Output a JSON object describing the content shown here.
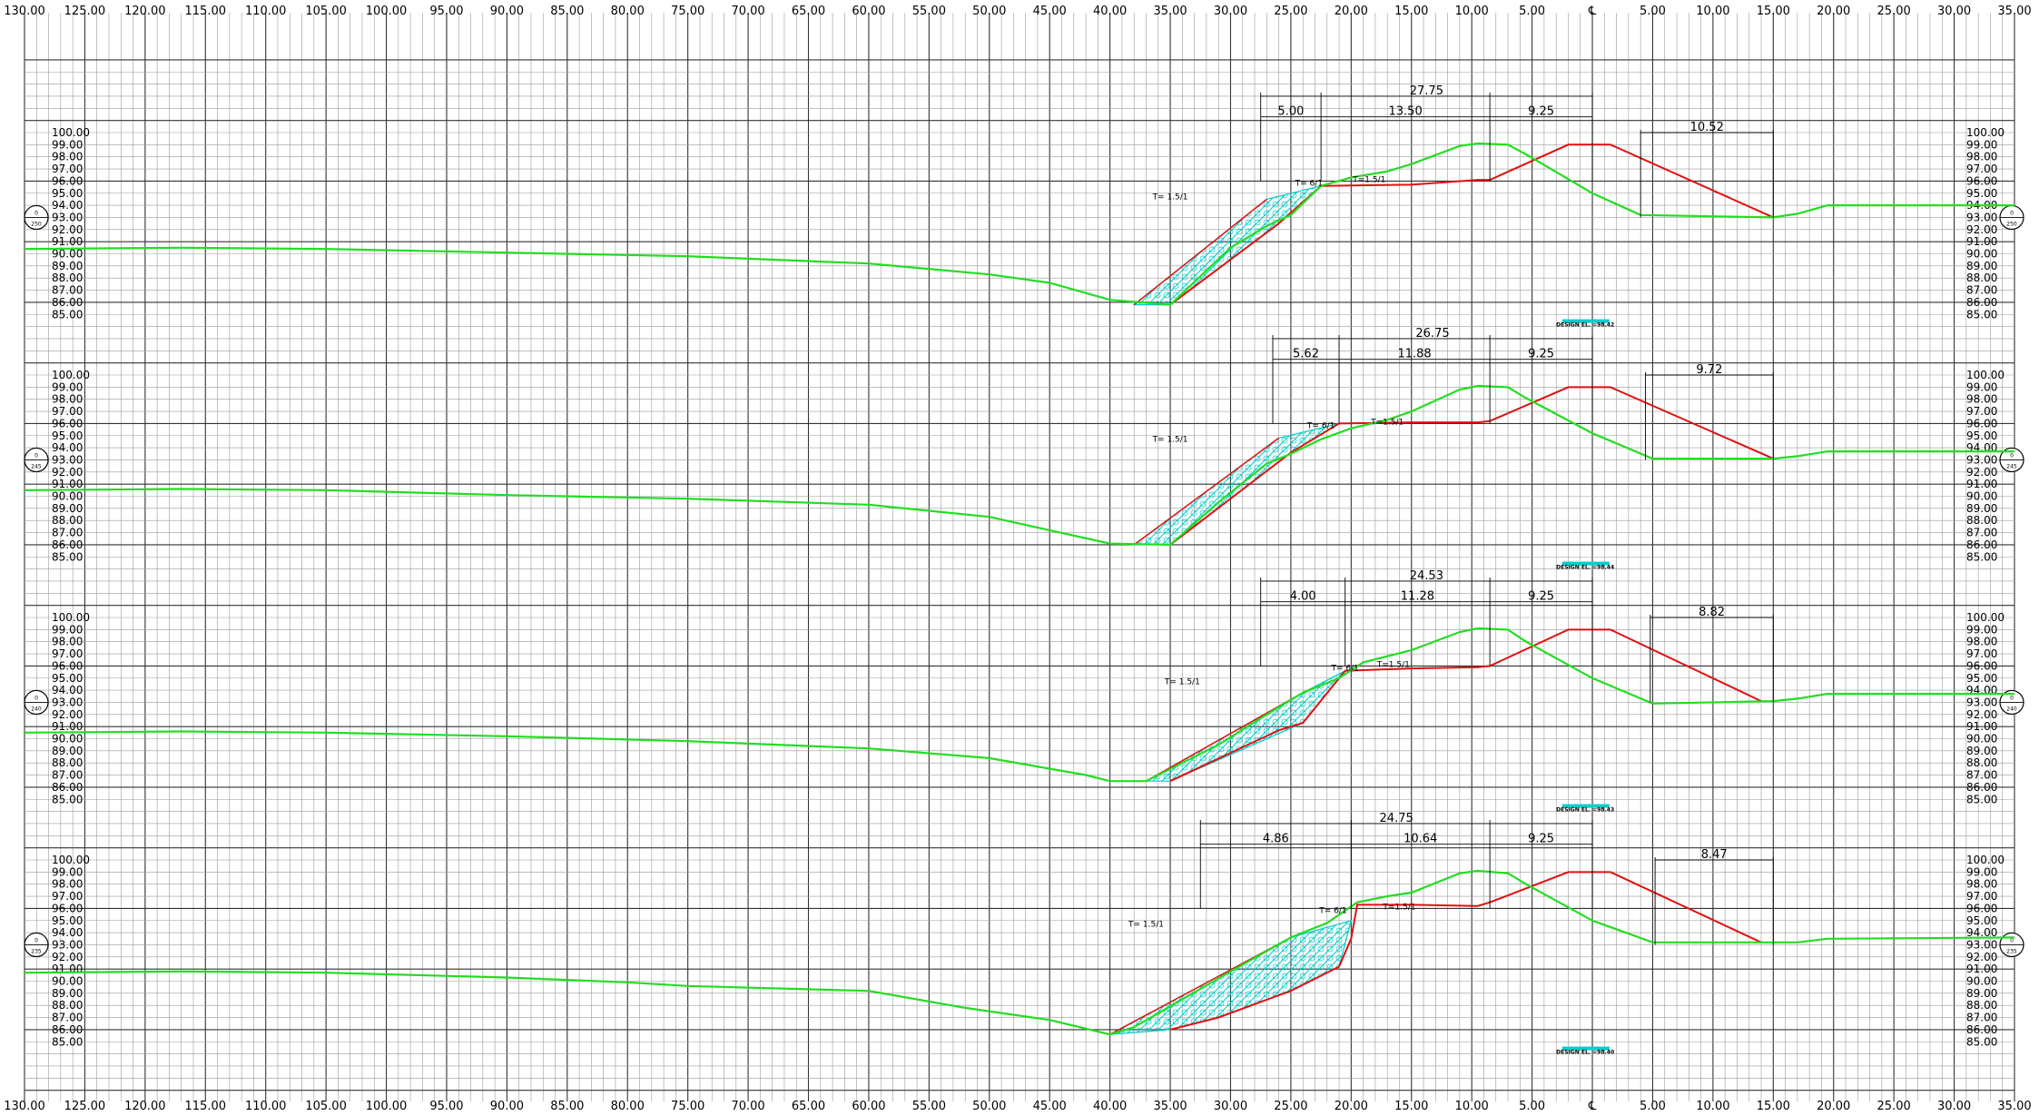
{
  "x_axis": {
    "labels": [
      "130.00",
      "125.00",
      "120.00",
      "115.00",
      "110.00",
      "105.00",
      "100.00",
      "95.00",
      "90.00",
      "85.00",
      "80.00",
      "75.00",
      "70.00",
      "65.00",
      "60.00",
      "55.00",
      "50.00",
      "45.00",
      "40.00",
      "35.00",
      "30.00",
      "25.00",
      "20.00",
      "15.00",
      "10.00",
      "5.00",
      "℄",
      "5.00",
      "10.00",
      "15.00",
      "20.00",
      "25.00",
      "30.00",
      "35.00"
    ],
    "values": [
      -130,
      -125,
      -120,
      -115,
      -110,
      -105,
      -100,
      -95,
      -90,
      -85,
      -80,
      -75,
      -70,
      -65,
      -60,
      -55,
      -50,
      -45,
      -40,
      -35,
      -30,
      -25,
      -20,
      -15,
      -10,
      -5,
      0,
      5,
      10,
      15,
      20,
      25,
      30,
      35
    ]
  },
  "y_axis": {
    "labels": [
      "100.00",
      "99.00",
      "98.00",
      "97.00",
      "96.00",
      "95.00",
      "94.00",
      "93.00",
      "92.00",
      "91.00",
      "90.00",
      "89.00",
      "88.00",
      "87.00",
      "86.00",
      "85.00"
    ],
    "values": [
      100,
      99,
      98,
      97,
      96,
      95,
      94,
      93,
      92,
      91,
      90,
      89,
      88,
      87,
      86,
      85
    ]
  },
  "colors": {
    "ground": "#22dd22",
    "design": "#e01010",
    "fill": "#00cccc",
    "grid": "#000000"
  },
  "sections": [
    {
      "station": "0+250",
      "dims": {
        "total": "27.75",
        "d1": "5.00",
        "d2": "13.50",
        "d3": "9.25",
        "right": "10.52"
      },
      "slope_labels": [
        "T= 1.5/1",
        "T= 6/1",
        "T=1.5/1"
      ],
      "design_el": "DESIGN EL. =98.42",
      "ground": [
        [
          -130,
          90.4
        ],
        [
          -117,
          90.5
        ],
        [
          -105,
          90.4
        ],
        [
          -90,
          90.1
        ],
        [
          -75,
          89.8
        ],
        [
          -60,
          89.2
        ],
        [
          -50,
          88.3
        ],
        [
          -45,
          87.6
        ],
        [
          -40,
          86.2
        ],
        [
          -35,
          85.8
        ],
        [
          -30,
          90.5
        ],
        [
          -27,
          92.3
        ],
        [
          -25,
          93.2
        ],
        [
          -22.5,
          95.6
        ],
        [
          -20,
          96.3
        ],
        [
          -17,
          96.8
        ],
        [
          -15,
          97.4
        ],
        [
          -11,
          98.9
        ],
        [
          -9.5,
          99.1
        ],
        [
          -7,
          99.0
        ],
        [
          -5.5,
          98.2
        ],
        [
          0,
          95.0
        ],
        [
          4,
          93.2
        ],
        [
          15,
          93.0
        ],
        [
          17,
          93.3
        ],
        [
          19.5,
          94.0
        ],
        [
          35,
          94.0
        ]
      ],
      "design": [
        [
          -35,
          85.8
        ],
        [
          -26,
          92.5
        ],
        [
          -22.5,
          95.6
        ],
        [
          -15,
          95.7
        ],
        [
          -9.5,
          96.1
        ],
        [
          -8.5,
          96.1
        ],
        [
          -2,
          99.0
        ],
        [
          1.5,
          99.0
        ],
        [
          15,
          93.0
        ]
      ],
      "fill": [
        [
          -38,
          85.8
        ],
        [
          -27,
          94.5
        ],
        [
          -22.5,
          95.6
        ],
        [
          -26,
          92.5
        ],
        [
          -35,
          85.8
        ]
      ]
    },
    {
      "station": "0+245",
      "dims": {
        "total": "26.75",
        "d1": "5.62",
        "d2": "11.88",
        "d3": "9.25",
        "right": "9.72"
      },
      "slope_labels": [
        "T= 1.5/1",
        "T= 6/1",
        "T=1.5/1"
      ],
      "design_el": "DESIGN EL. =98.44",
      "ground": [
        [
          -130,
          90.5
        ],
        [
          -117,
          90.6
        ],
        [
          -105,
          90.5
        ],
        [
          -90,
          90.1
        ],
        [
          -75,
          89.8
        ],
        [
          -60,
          89.3
        ],
        [
          -50,
          88.3
        ],
        [
          -45,
          87.2
        ],
        [
          -40,
          86.1
        ],
        [
          -35,
          86.0
        ],
        [
          -31,
          89.5
        ],
        [
          -27,
          92.7
        ],
        [
          -25,
          93.5
        ],
        [
          -22.5,
          94.7
        ],
        [
          -20,
          95.6
        ],
        [
          -17,
          96.3
        ],
        [
          -15,
          97.0
        ],
        [
          -11,
          98.8
        ],
        [
          -9.5,
          99.1
        ],
        [
          -7,
          99.0
        ],
        [
          -5.5,
          98.1
        ],
        [
          0,
          95.2
        ],
        [
          5,
          93.1
        ],
        [
          15,
          93.1
        ],
        [
          17,
          93.3
        ],
        [
          19.5,
          93.7
        ],
        [
          35,
          93.7
        ]
      ],
      "design": [
        [
          -35,
          86.0
        ],
        [
          -25,
          93.6
        ],
        [
          -21,
          96.0
        ],
        [
          -15,
          96.1
        ],
        [
          -9.5,
          96.1
        ],
        [
          -8.5,
          96.2
        ],
        [
          -2,
          99.0
        ],
        [
          1.5,
          99.0
        ],
        [
          15,
          93.1
        ]
      ],
      "fill": [
        [
          -38,
          86.0
        ],
        [
          -26,
          94.8
        ],
        [
          -21,
          96.0
        ],
        [
          -25,
          93.6
        ],
        [
          -35,
          86.0
        ]
      ]
    },
    {
      "station": "0+240",
      "dims": {
        "total": "24.53",
        "d1": "4.00",
        "d2": "11.28",
        "d3": "9.25",
        "right": "8.82"
      },
      "slope_labels": [
        "T= 1.5/1",
        "T= 6/1",
        "T=1.5/1"
      ],
      "design_el": "DESIGN EL. =98.43",
      "ground": [
        [
          -130,
          90.5
        ],
        [
          -117,
          90.6
        ],
        [
          -105,
          90.5
        ],
        [
          -90,
          90.2
        ],
        [
          -75,
          89.8
        ],
        [
          -60,
          89.2
        ],
        [
          -50,
          88.4
        ],
        [
          -42,
          87.0
        ],
        [
          -40,
          86.5
        ],
        [
          -37,
          86.5
        ],
        [
          -31,
          89.5
        ],
        [
          -27,
          92.0
        ],
        [
          -24,
          93.8
        ],
        [
          -21,
          95.0
        ],
        [
          -19,
          96.3
        ],
        [
          -17,
          96.8
        ],
        [
          -15,
          97.3
        ],
        [
          -11,
          98.8
        ],
        [
          -9.5,
          99.1
        ],
        [
          -7,
          99.0
        ],
        [
          -5.5,
          98.0
        ],
        [
          0,
          95.0
        ],
        [
          5,
          92.9
        ],
        [
          15,
          93.1
        ],
        [
          17,
          93.3
        ],
        [
          19.5,
          93.7
        ],
        [
          35,
          93.7
        ]
      ],
      "design": [
        [
          -35,
          86.5
        ],
        [
          -26,
          90.7
        ],
        [
          -24,
          91.3
        ],
        [
          -20.5,
          95.6
        ],
        [
          -15,
          95.8
        ],
        [
          -9.5,
          95.9
        ],
        [
          -8.5,
          96.0
        ],
        [
          -2,
          99.0
        ],
        [
          1.5,
          99.0
        ],
        [
          14,
          93.1
        ]
      ],
      "fill": [
        [
          -37,
          86.5
        ],
        [
          -24,
          93.8
        ],
        [
          -20.5,
          95.6
        ],
        [
          -24,
          91.3
        ],
        [
          -35,
          86.5
        ]
      ]
    },
    {
      "station": "0+235",
      "dims": {
        "total": "24.75",
        "d1": "4.86",
        "d2": "10.64",
        "d3": "9.25",
        "right": "8.47"
      },
      "slope_labels": [
        "T= 1.5/1",
        "T= 6/1",
        "T=1.5/1"
      ],
      "design_el": "DESIGN EL. =98.40",
      "ground": [
        [
          -130,
          90.7
        ],
        [
          -117,
          90.8
        ],
        [
          -105,
          90.7
        ],
        [
          -90,
          90.3
        ],
        [
          -80,
          89.9
        ],
        [
          -75,
          89.6
        ],
        [
          -60,
          89.2
        ],
        [
          -52,
          87.8
        ],
        [
          -45,
          86.8
        ],
        [
          -40,
          85.6
        ],
        [
          -38,
          86.2
        ],
        [
          -30,
          90.8
        ],
        [
          -25,
          93.6
        ],
        [
          -22,
          94.8
        ],
        [
          -19.5,
          96.5
        ],
        [
          -17,
          97.0
        ],
        [
          -15,
          97.3
        ],
        [
          -11,
          98.9
        ],
        [
          -9.5,
          99.1
        ],
        [
          -7,
          98.9
        ],
        [
          -5.5,
          98.0
        ],
        [
          0,
          95.0
        ],
        [
          5,
          93.2
        ],
        [
          15,
          93.2
        ],
        [
          17,
          93.2
        ],
        [
          19.5,
          93.5
        ],
        [
          35,
          93.6
        ]
      ],
      "design": [
        [
          -35,
          86.0
        ],
        [
          -31,
          87.0
        ],
        [
          -25,
          89.2
        ],
        [
          -21,
          91.2
        ],
        [
          -20,
          93.5
        ],
        [
          -19.5,
          96.3
        ],
        [
          -15,
          96.3
        ],
        [
          -9.5,
          96.2
        ],
        [
          -8.5,
          96.5
        ],
        [
          -2,
          99.0
        ],
        [
          1.5,
          99.0
        ],
        [
          14,
          93.2
        ]
      ],
      "fill": [
        [
          -40,
          85.6
        ],
        [
          -25,
          93.6
        ],
        [
          -20,
          95.0
        ],
        [
          -21,
          91.2
        ],
        [
          -25,
          89.2
        ],
        [
          -31,
          87.0
        ],
        [
          -35,
          86.0
        ]
      ]
    }
  ]
}
